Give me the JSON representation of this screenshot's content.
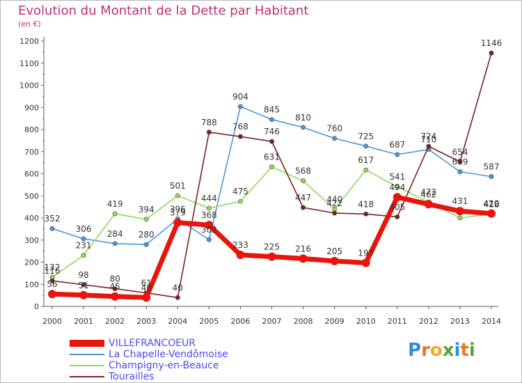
{
  "chart_data": {
    "type": "line",
    "title": "Evolution du Montant de la Dette par Habitant",
    "subtitle": "(en €)",
    "x": [
      "2000",
      "2001",
      "2002",
      "2003",
      "2004",
      "2005",
      "2006",
      "2007",
      "2008",
      "2009",
      "2010",
      "2011",
      "2012",
      "2013",
      "2014"
    ],
    "ylim": [
      0,
      1200
    ],
    "yticks": [
      0,
      100,
      200,
      300,
      400,
      500,
      600,
      700,
      800,
      900,
      1000,
      1100,
      1200
    ],
    "grid": false,
    "legend_position": "bottom-left",
    "series": [
      {
        "name": "VILLEFRANCOEUR",
        "color": "#e8140e",
        "emphasis": true,
        "values": [
          56,
          51,
          45,
          40,
          379,
          368,
          233,
          225,
          216,
          205,
          197,
          494,
          462,
          431,
          420
        ],
        "labels": [
          "56",
          "51",
          "45",
          "40",
          "379",
          "368",
          "233",
          "225",
          "216",
          "205",
          "197",
          "494",
          "462",
          "431",
          "420"
        ]
      },
      {
        "name": "La Chapelle-Vendômoise",
        "color": "#4a96d8",
        "values": [
          352,
          306,
          284,
          280,
          396,
          302,
          904,
          845,
          810,
          760,
          725,
          687,
          710,
          609,
          587
        ],
        "labels": [
          "352",
          "306",
          "284",
          "280",
          "396",
          "302",
          "904",
          "845",
          "810",
          "760",
          "725",
          "687",
          "710",
          "609",
          "587"
        ]
      },
      {
        "name": "Champigny-en-Beauce",
        "color": "#8fd85a",
        "values": [
          132,
          231,
          419,
          394,
          501,
          444,
          475,
          631,
          568,
          440,
          617,
          541,
          472,
          400,
          418
        ],
        "labels": [
          "132",
          "231",
          "419",
          "394",
          "501",
          "444",
          "475",
          "631",
          "568",
          "440",
          "617",
          "541",
          "472",
          "",
          "418"
        ]
      },
      {
        "name": "Tourailles",
        "color": "#7a2020",
        "values": [
          116,
          98,
          80,
          61,
          40,
          788,
          768,
          746,
          447,
          422,
          418,
          405,
          724,
          654,
          1146
        ],
        "labels": [
          "116",
          "98",
          "80",
          "61",
          "40",
          "788",
          "768",
          "746",
          "447",
          "422",
          "418",
          "405",
          "724",
          "654",
          "1146"
        ]
      }
    ]
  },
  "legend": {
    "items": [
      {
        "label": "VILLEFRANCOEUR",
        "color": "#e8140e",
        "thick": true
      },
      {
        "label": "La Chapelle-Vendômoise",
        "color": "#4a96d8",
        "thick": false
      },
      {
        "label": "Champigny-en-Beauce",
        "color": "#8fd85a",
        "thick": false
      },
      {
        "label": "Tourailles",
        "color": "#7a2020",
        "thick": false
      }
    ]
  },
  "logo": {
    "letters": [
      "P",
      "r",
      "o",
      "x",
      "i",
      "t",
      "i"
    ],
    "colors": [
      "#2b8fd8",
      "#e87a20",
      "#e8b020",
      "#5aa03a",
      "#2b8fd8",
      "#e87a20",
      "#5aa03a"
    ]
  }
}
